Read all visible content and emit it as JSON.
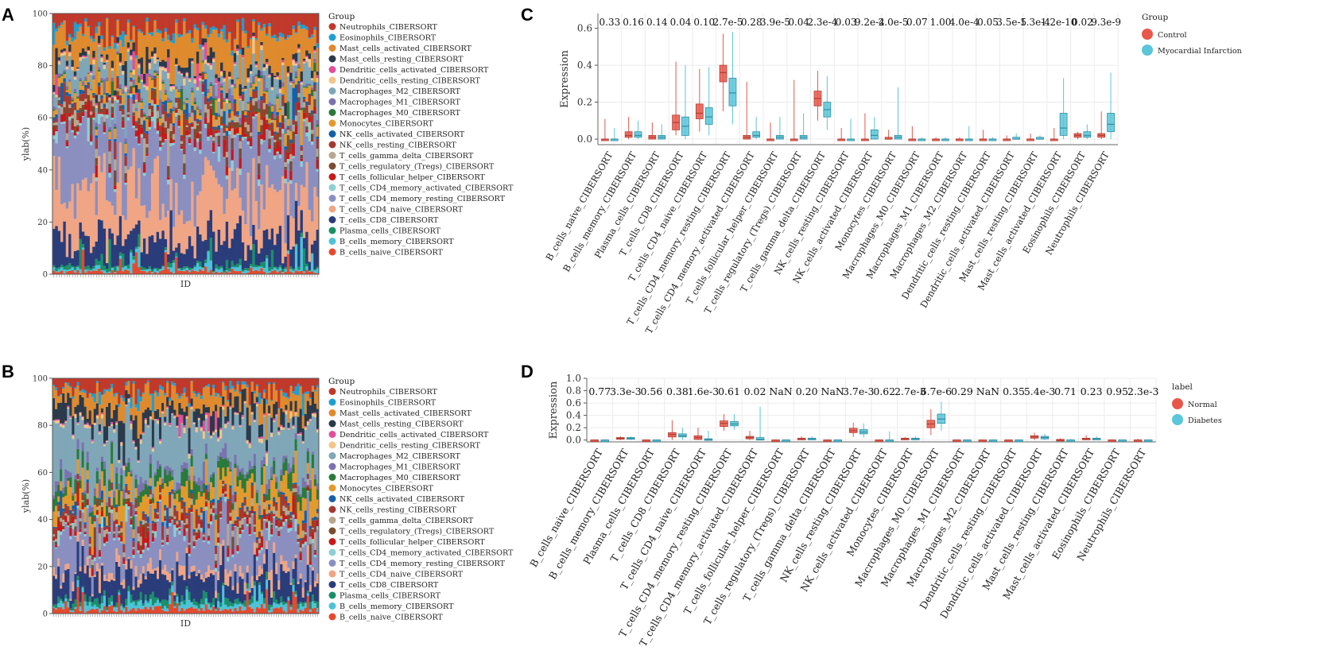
{
  "panels": {
    "A": {
      "letter": "A"
    },
    "B": {
      "letter": "B"
    },
    "C": {
      "letter": "C"
    },
    "D": {
      "letter": "D"
    }
  },
  "cell_types": [
    "Neutrophils_CIBERSORT",
    "Eosinophils_CIBERSORT",
    "Mast_cells_activated_CIBERSORT",
    "Mast_cells_resting_CIBERSORT",
    "Dendritic_cells_activated_CIBERSORT",
    "Dendritic_cells_resting_CIBERSORT",
    "Macrophages_M2_CIBERSORT",
    "Macrophages_M1_CIBERSORT",
    "Macrophages_M0_CIBERSORT",
    "Monocytes_CIBERSORT",
    "NK_cells_activated_CIBERSORT",
    "NK_cells_resting_CIBERSORT",
    "T_cells_gamma_delta_CIBERSORT",
    "T_cells_regulatory_(Tregs)_CIBERSORT",
    "T_cells_follicular_helper_CIBERSORT",
    "T_cells_CD4_memory_activated_CIBERSORT",
    "T_cells_CD4_memory_resting_CIBERSORT",
    "T_cells_CD4_naive_CIBERSORT",
    "T_cells_CD8_CIBERSORT",
    "Plasma_cells_CIBERSORT",
    "B_cells_memory_CIBERSORT",
    "B_cells_naive_CIBERSORT"
  ],
  "colors": {
    "cell_types": [
      "#c0392b",
      "#1f9fd1",
      "#e08a2e",
      "#2b3a4a",
      "#e0509a",
      "#f2c58a",
      "#7fa7b8",
      "#7b72b0",
      "#2a7a3a",
      "#e39a2c",
      "#1560a8",
      "#a33a32",
      "#b8a68e",
      "#7a4d30",
      "#c91818",
      "#8ecfd4",
      "#8a8fc0",
      "#f0a585",
      "#2a3c7a",
      "#1a8f6a",
      "#4cc3d8",
      "#e64a2e"
    ],
    "control": "#e8574a",
    "mi": "#5bc5d9",
    "normal": "#e8574a",
    "diabetes": "#5bc5d9"
  },
  "chart_data": [
    {
      "panel": "A",
      "type": "bar",
      "stacked": true,
      "xlabel": "ID",
      "ylabel": "ylab(%)",
      "ylim": [
        0,
        100
      ],
      "yticks": [
        "0",
        "20",
        "40",
        "60",
        "80",
        "100"
      ],
      "legend_title": "Group",
      "n_samples": 100,
      "series_mean_percent": [
        6,
        1,
        10,
        2,
        0.5,
        1,
        6,
        1,
        0.5,
        3,
        1,
        3,
        2,
        2,
        2,
        1,
        22,
        18,
        9,
        1,
        1,
        1
      ]
    },
    {
      "panel": "B",
      "type": "bar",
      "stacked": true,
      "xlabel": "ID",
      "ylabel": "ylab(%)",
      "ylim": [
        0,
        100
      ],
      "yticks": [
        "0",
        "20",
        "40",
        "60",
        "80",
        "100"
      ],
      "legend_title": "Group",
      "n_samples": 110,
      "series_mean_percent": [
        5,
        1,
        7,
        6,
        0.5,
        1,
        20,
        3,
        4,
        8,
        1,
        3,
        2,
        1,
        2,
        1,
        15,
        3,
        10,
        2,
        2,
        2
      ]
    },
    {
      "panel": "C",
      "type": "box",
      "ylabel": "Expression",
      "ylim": [
        -0.03,
        0.68
      ],
      "yticks": [
        "0.0",
        "0.2",
        "0.4",
        "0.6"
      ],
      "legend_title": "Group",
      "groups": [
        "Control",
        "Myocardial Infarction"
      ],
      "categories": [
        "B_cells_naive_CIBERSORT",
        "B_cells_memory_CIBERSORT",
        "Plasma_cells_CIBERSORT",
        "T_cells_CD8_CIBERSORT",
        "T_cells_CD4_naive_CIBERSORT",
        "T_cells_CD4_memory_resting_CIBERSORT",
        "T_cells_CD4_memory_activated_CIBERSORT",
        "T_cells_follicular_helper_CIBERSORT",
        "T_cells_regulatory_(Tregs)_CIBERSORT",
        "T_cells_gamma_delta_CIBERSORT",
        "NK_cells_resting_CIBERSORT",
        "NK_cells_activated_CIBERSORT",
        "Monocytes_CIBERSORT",
        "Macrophages_M0_CIBERSORT",
        "Macrophages_M1_CIBERSORT",
        "Macrophages_M2_CIBERSORT",
        "Dendritic_cells_resting_CIBERSORT",
        "Dendritic_cells_activated_CIBERSORT",
        "Mast_cells_resting_CIBERSORT",
        "Mast_cells_activated_CIBERSORT",
        "Eosinophils_CIBERSORT",
        "Neutrophils_CIBERSORT"
      ],
      "pvalues": [
        "0.33",
        "0.16",
        "0.14",
        "0.04",
        "0.10",
        "2.7e-5",
        "0.28",
        "3.9e-5",
        "0.04",
        "2.3e-4",
        "0.03",
        "9.2e-4",
        "2.0e-5",
        "0.07",
        "1.00",
        "4.0e-4",
        "0.05",
        "3.5e-5",
        "1.3e-4",
        "1.2e-10",
        "0.02",
        "9.3e-9"
      ],
      "series": [
        {
          "name": "Control",
          "boxes": [
            [
              0,
              0,
              0,
              0,
              0.11
            ],
            [
              0,
              0.01,
              0.02,
              0.04,
              0.12
            ],
            [
              0,
              0,
              0.01,
              0.02,
              0.09
            ],
            [
              0.02,
              0.05,
              0.09,
              0.13,
              0.42
            ],
            [
              0.04,
              0.11,
              0.14,
              0.19,
              0.38
            ],
            [
              0.15,
              0.31,
              0.36,
              0.4,
              0.57
            ],
            [
              0,
              0,
              0.01,
              0.02,
              0.31
            ],
            [
              0,
              0,
              0,
              0,
              0.09
            ],
            [
              0,
              0,
              0,
              0,
              0.32
            ],
            [
              0.1,
              0.18,
              0.22,
              0.26,
              0.37
            ],
            [
              0,
              0,
              0,
              0,
              0.06
            ],
            [
              0,
              0,
              0,
              0,
              0.14
            ],
            [
              0,
              0,
              0,
              0.01,
              0.05
            ],
            [
              0,
              0,
              0,
              0,
              0.07
            ],
            [
              0,
              0,
              0,
              0,
              0.01
            ],
            [
              0,
              0,
              0,
              0,
              0.01
            ],
            [
              0,
              0,
              0,
              0,
              0.05
            ],
            [
              0,
              0,
              0,
              0,
              0.02
            ],
            [
              0,
              0,
              0,
              0,
              0.03
            ],
            [
              0,
              0,
              0,
              0,
              0.06
            ],
            [
              0,
              0.01,
              0.02,
              0.03,
              0.04
            ],
            [
              0,
              0.01,
              0.02,
              0.03,
              0.15
            ]
          ]
        },
        {
          "name": "Myocardial Infarction",
          "boxes": [
            [
              0,
              0,
              0,
              0,
              0.06
            ],
            [
              0,
              0.01,
              0.02,
              0.04,
              0.1
            ],
            [
              0,
              0,
              0.01,
              0.02,
              0.08
            ],
            [
              0,
              0.02,
              0.07,
              0.12,
              0.4
            ],
            [
              0.02,
              0.08,
              0.12,
              0.17,
              0.39
            ],
            [
              0.08,
              0.18,
              0.25,
              0.33,
              0.58
            ],
            [
              0,
              0.01,
              0.02,
              0.04,
              0.12
            ],
            [
              0,
              0,
              0.01,
              0.02,
              0.12
            ],
            [
              0,
              0,
              0.01,
              0.02,
              0.14
            ],
            [
              0.05,
              0.12,
              0.16,
              0.2,
              0.34
            ],
            [
              0,
              0,
              0,
              0,
              0.11
            ],
            [
              0,
              0,
              0.02,
              0.05,
              0.12
            ],
            [
              0,
              0,
              0.01,
              0.02,
              0.28
            ],
            [
              0,
              0,
              0,
              0,
              0.01
            ],
            [
              0,
              0,
              0,
              0,
              0.01
            ],
            [
              0,
              0,
              0,
              0,
              0.07
            ],
            [
              0,
              0,
              0,
              0,
              0.01
            ],
            [
              0,
              0,
              0,
              0.01,
              0.03
            ],
            [
              0,
              0,
              0,
              0.01,
              0.02
            ],
            [
              0,
              0.02,
              0.06,
              0.14,
              0.33
            ],
            [
              0,
              0.01,
              0.02,
              0.04,
              0.08
            ],
            [
              0,
              0.04,
              0.08,
              0.14,
              0.36
            ]
          ]
        }
      ]
    },
    {
      "panel": "D",
      "type": "box",
      "ylabel": "Expression",
      "ylim": [
        -0.03,
        1.0
      ],
      "yticks": [
        "0.0",
        "0.2",
        "0.4",
        "0.6",
        "0.8",
        "1.0"
      ],
      "legend_title": "label",
      "groups": [
        "Normal",
        "Diabetes"
      ],
      "categories": [
        "B_cells_naive_CIBERSORT",
        "B_cells_memory_CIBERSORT",
        "Plasma_cells_CIBERSORT",
        "T_cells_CD8_CIBERSORT",
        "T_cells_CD4_naive_CIBERSORT",
        "T_cells_CD4_memory_resting_CIBERSORT",
        "T_cells_CD4_memory_activated_CIBERSORT",
        "T_cells_follicular_helper_CIBERSORT",
        "T_cells_regulatory_(Tregs)_CIBERSORT",
        "T_cells_gamma_delta_CIBERSORT",
        "NK_cells_resting_CIBERSORT",
        "NK_cells_activated_CIBERSORT",
        "Monocytes_CIBERSORT",
        "Macrophages_M0_CIBERSORT",
        "Macrophages_M1_CIBERSORT",
        "Macrophages_M2_CIBERSORT",
        "Dendritic_cells_resting_CIBERSORT",
        "Dendritic_cells_activated_CIBERSORT",
        "Mast_cells_resting_CIBERSORT",
        "Mast_cells_activated_CIBERSORT",
        "Eosinophils_CIBERSORT",
        "Neutrophils_CIBERSORT"
      ],
      "pvalues": [
        "0.77",
        "3.3e-3",
        "0.56",
        "0.38",
        "1.6e-3",
        "0.61",
        "0.02",
        "NaN",
        "0.20",
        "NaN",
        "3.7e-3",
        "0.62",
        "2.7e-3",
        "6.7e-6",
        "0.29",
        "NaN",
        "0.35",
        "5.4e-3",
        "0.71",
        "0.23",
        "0.95",
        "2.3e-3"
      ],
      "series": [
        {
          "name": "Normal",
          "boxes": [
            [
              0,
              0,
              0,
              0,
              0.01
            ],
            [
              0,
              0.02,
              0.03,
              0.04,
              0.06
            ],
            [
              0,
              0,
              0,
              0,
              0.01
            ],
            [
              0,
              0.05,
              0.09,
              0.12,
              0.32
            ],
            [
              0,
              0.01,
              0.04,
              0.07,
              0.2
            ],
            [
              0.15,
              0.22,
              0.27,
              0.31,
              0.42
            ],
            [
              0,
              0.02,
              0.04,
              0.06,
              0.15
            ],
            [
              0,
              0,
              0,
              0,
              0.01
            ],
            [
              0,
              0.01,
              0.02,
              0.03,
              0.06
            ],
            [
              0,
              0,
              0,
              0,
              0.01
            ],
            [
              0.05,
              0.12,
              0.15,
              0.19,
              0.28
            ],
            [
              0,
              0,
              0,
              0,
              0.01
            ],
            [
              0,
              0.01,
              0.02,
              0.03,
              0.05
            ],
            [
              0.08,
              0.2,
              0.26,
              0.32,
              0.5
            ],
            [
              0,
              0,
              0,
              0,
              0.01
            ],
            [
              0,
              0,
              0,
              0,
              0.01
            ],
            [
              0,
              0,
              0,
              0,
              0.01
            ],
            [
              0,
              0.03,
              0.05,
              0.07,
              0.12
            ],
            [
              0,
              0,
              0,
              0.01,
              0.03
            ],
            [
              0,
              0.01,
              0.02,
              0.03,
              0.08
            ],
            [
              0,
              0,
              0,
              0,
              0.01
            ],
            [
              0,
              0,
              0,
              0,
              0.02
            ]
          ]
        },
        {
          "name": "Diabetes",
          "boxes": [
            [
              0,
              0,
              0,
              0,
              0.01
            ],
            [
              0,
              0.02,
              0.03,
              0.04,
              0.06
            ],
            [
              0,
              0,
              0,
              0,
              0.01
            ],
            [
              0,
              0.05,
              0.07,
              0.1,
              0.2
            ],
            [
              0,
              0,
              0.01,
              0.02,
              0.15
            ],
            [
              0.17,
              0.23,
              0.26,
              0.3,
              0.42
            ],
            [
              0,
              0,
              0.01,
              0.04,
              0.54
            ],
            [
              0,
              0,
              0,
              0,
              0.01
            ],
            [
              0,
              0.01,
              0.02,
              0.03,
              0.06
            ],
            [
              0,
              0,
              0,
              0,
              0.01
            ],
            [
              0.04,
              0.1,
              0.13,
              0.17,
              0.27
            ],
            [
              0,
              0,
              0,
              0,
              0.14
            ],
            [
              0,
              0.01,
              0.02,
              0.03,
              0.06
            ],
            [
              0.15,
              0.27,
              0.34,
              0.42,
              0.62
            ],
            [
              0,
              0,
              0,
              0,
              0.01
            ],
            [
              0,
              0,
              0,
              0,
              0.01
            ],
            [
              0,
              0,
              0,
              0,
              0.01
            ],
            [
              0,
              0.02,
              0.04,
              0.06,
              0.1
            ],
            [
              0,
              0,
              0,
              0,
              0.02
            ],
            [
              0,
              0.01,
              0.02,
              0.03,
              0.06
            ],
            [
              0,
              0,
              0,
              0,
              0.01
            ],
            [
              0,
              0,
              0,
              0,
              0.01
            ]
          ]
        }
      ]
    }
  ]
}
